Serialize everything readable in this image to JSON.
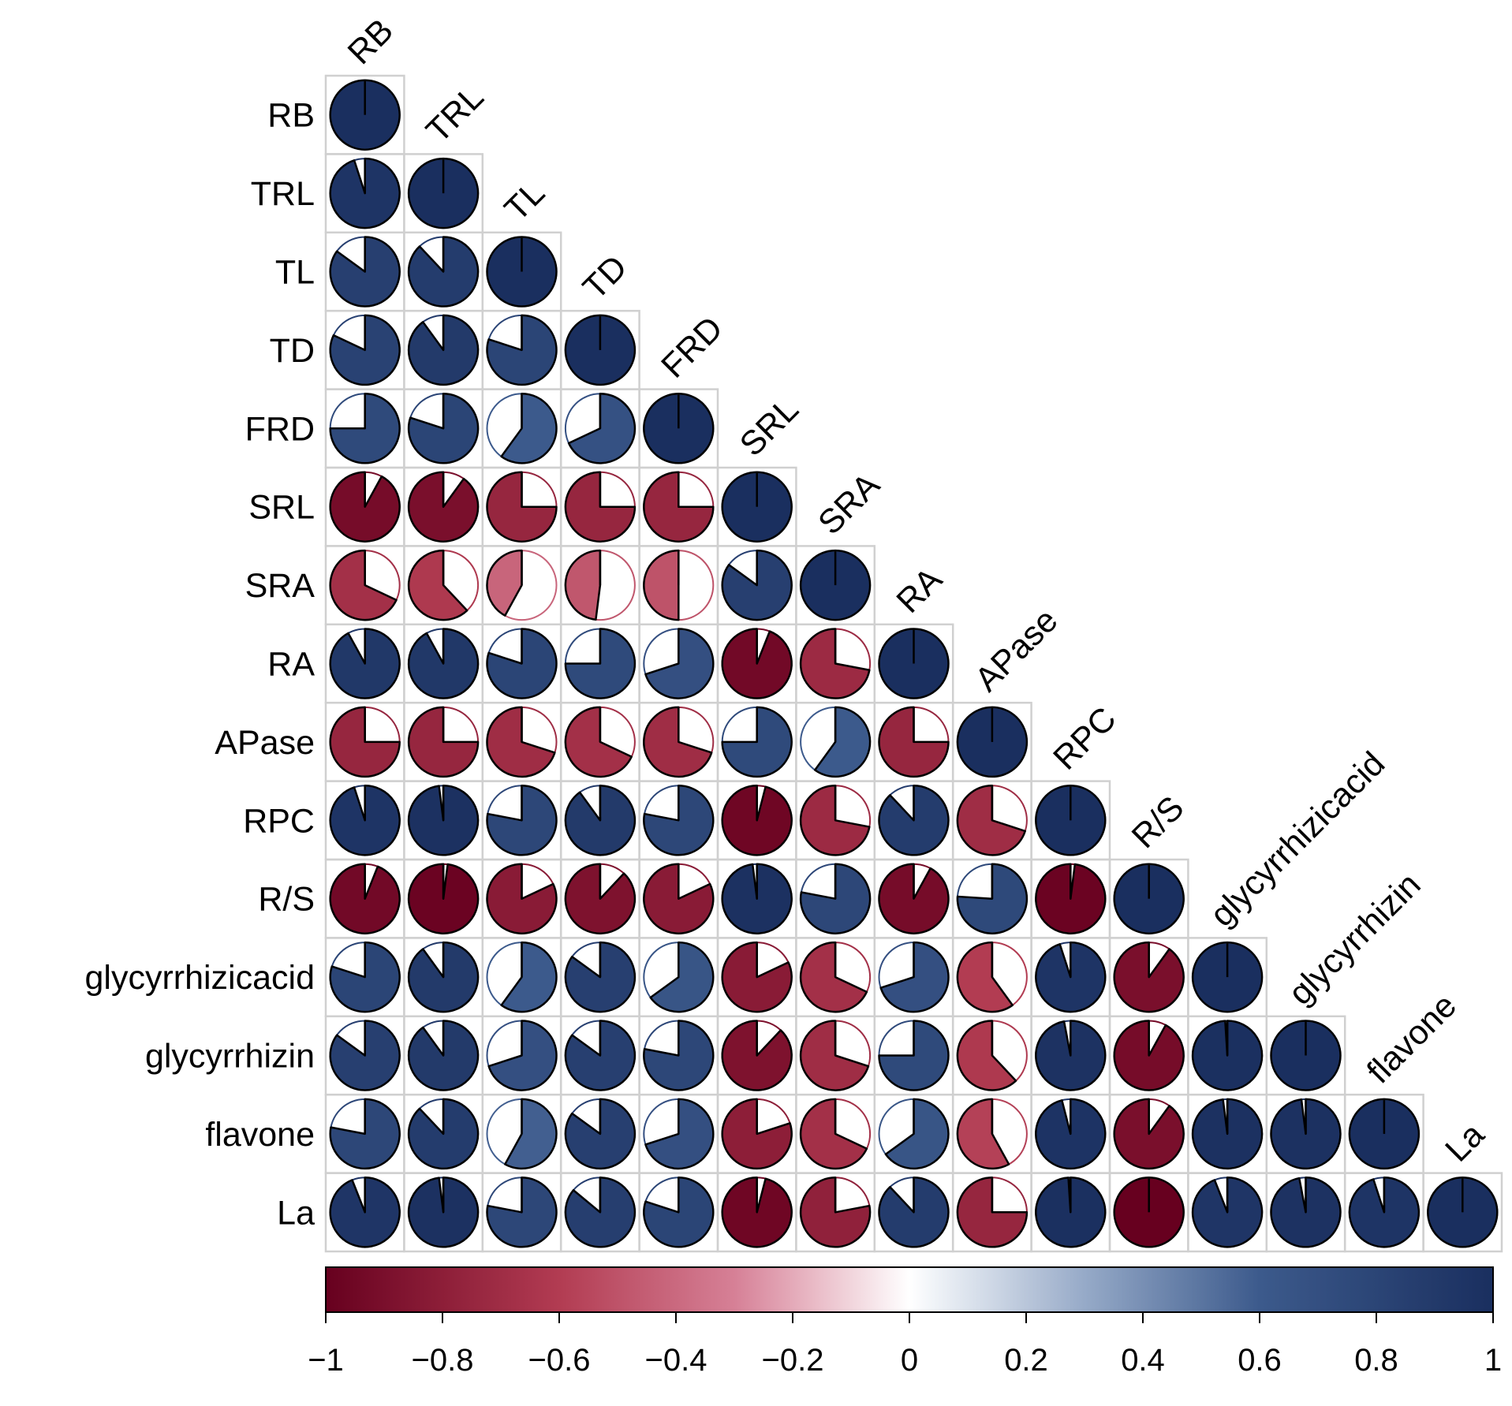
{
  "chart_data": {
    "type": "heatmap",
    "style": "correlogram-lower-triangle-pie",
    "variables": [
      "RB",
      "TRL",
      "TL",
      "TD",
      "FRD",
      "SRL",
      "SRA",
      "RA",
      "APase",
      "RPC",
      "R/S",
      "glycyrrhizicacid",
      "glycyrrhizin",
      "flavone",
      "La"
    ],
    "matrix": [
      [
        1.0
      ],
      [
        0.95,
        1.0
      ],
      [
        0.85,
        0.88,
        1.0
      ],
      [
        0.82,
        0.9,
        0.8,
        1.0
      ],
      [
        0.75,
        0.8,
        0.6,
        0.68,
        1.0
      ],
      [
        -0.92,
        -0.9,
        -0.75,
        -0.75,
        -0.75,
        1.0
      ],
      [
        -0.68,
        -0.62,
        -0.42,
        -0.48,
        -0.5,
        0.85,
        1.0
      ],
      [
        0.92,
        0.92,
        0.8,
        0.75,
        0.7,
        -0.94,
        -0.72,
        1.0
      ],
      [
        -0.75,
        -0.75,
        -0.7,
        -0.68,
        -0.7,
        0.75,
        0.6,
        -0.75,
        1.0
      ],
      [
        0.95,
        0.98,
        0.78,
        0.9,
        0.78,
        -0.96,
        -0.72,
        0.88,
        -0.7,
        1.0
      ],
      [
        -0.94,
        -0.98,
        -0.82,
        -0.88,
        -0.82,
        0.98,
        0.78,
        -0.92,
        0.76,
        -0.98,
        1.0
      ],
      [
        0.8,
        0.9,
        0.6,
        0.85,
        0.65,
        -0.82,
        -0.68,
        0.7,
        -0.6,
        0.95,
        -0.9,
        1.0
      ],
      [
        0.85,
        0.9,
        0.7,
        0.85,
        0.78,
        -0.88,
        -0.7,
        0.75,
        -0.62,
        0.97,
        -0.92,
        0.99,
        1.0
      ],
      [
        0.78,
        0.88,
        0.58,
        0.85,
        0.7,
        -0.8,
        -0.68,
        0.65,
        -0.58,
        0.96,
        -0.9,
        0.98,
        0.98,
        1.0
      ],
      [
        0.94,
        0.98,
        0.78,
        0.86,
        0.8,
        -0.96,
        -0.78,
        0.88,
        -0.75,
        0.99,
        -1.0,
        0.94,
        0.97,
        0.95,
        1.0
      ]
    ],
    "colorbar": {
      "min": -1,
      "max": 1,
      "ticks": [
        "−1",
        "−0.8",
        "−0.6",
        "−0.4",
        "−0.2",
        "0",
        "0.2",
        "0.4",
        "0.6",
        "0.8",
        "1"
      ],
      "colors": {
        "negative": "#67001f",
        "zero": "#ffffff",
        "positive": "#1a2f5f"
      }
    }
  }
}
